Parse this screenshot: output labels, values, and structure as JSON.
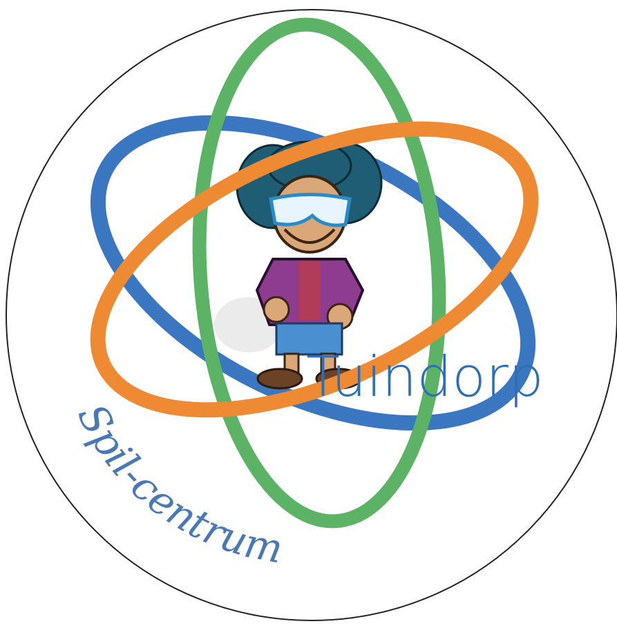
{
  "logo": {
    "arc_text": "Spil-centrum",
    "name": "Tuindorp"
  }
}
